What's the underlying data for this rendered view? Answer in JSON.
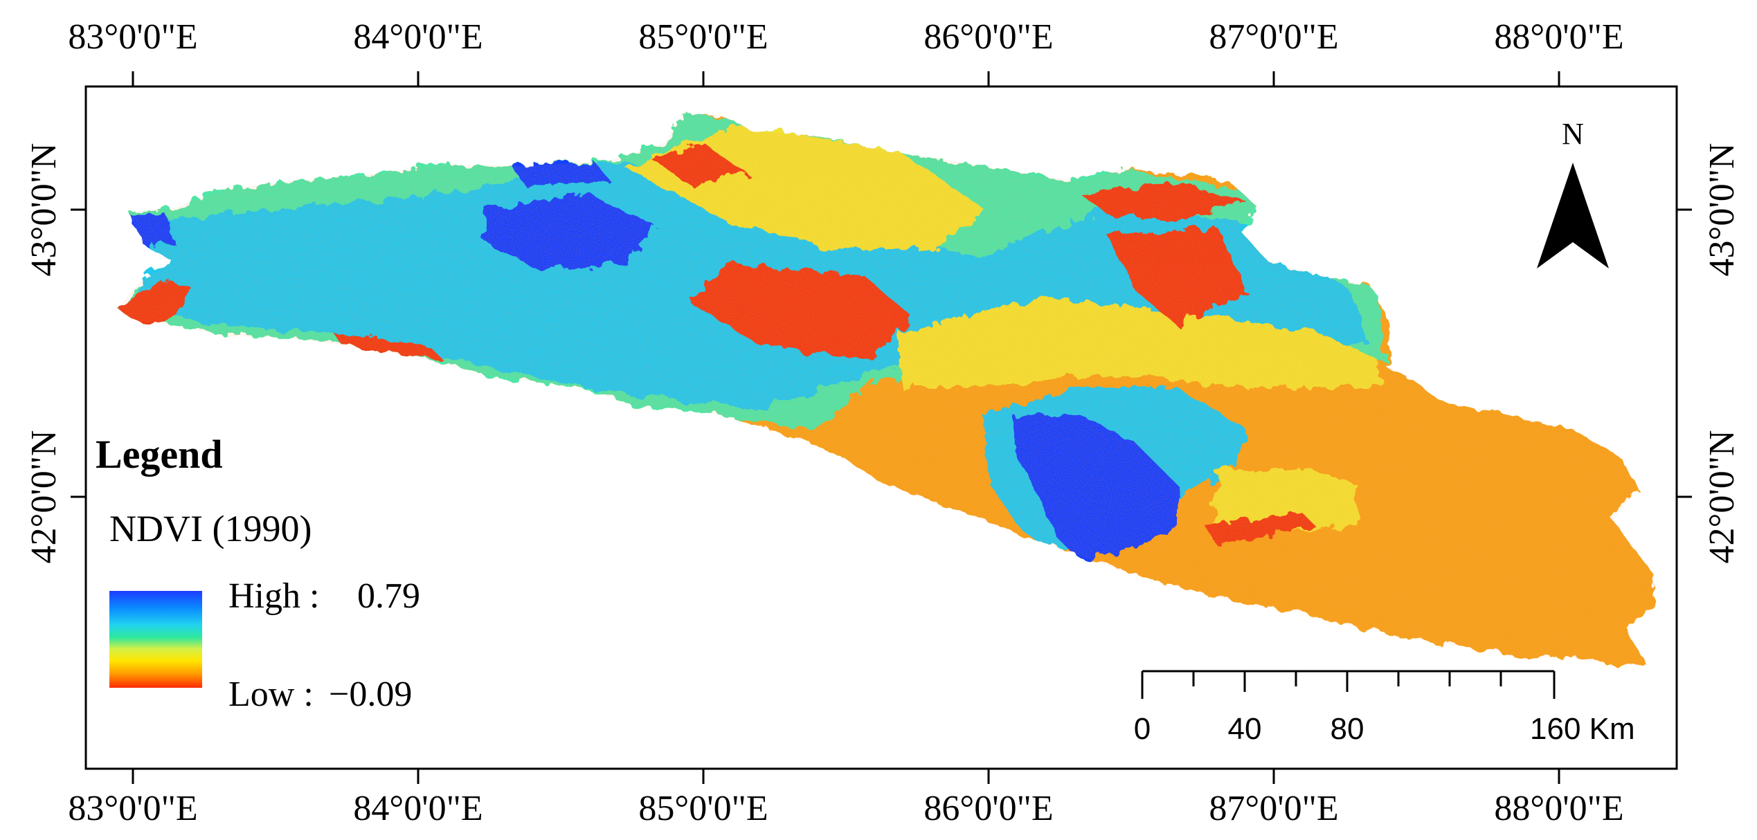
{
  "top_labels": [
    "83°0'0\"E",
    "84°0'0\"E",
    "85°0'0\"E",
    "86°0'0\"E",
    "87°0'0\"E",
    "88°0'0\"E"
  ],
  "bottom_labels": [
    "83°0'0\"E",
    "84°0'0\"E",
    "85°0'0\"E",
    "86°0'0\"E",
    "87°0'0\"E",
    "88°0'0\"E"
  ],
  "left_labels": [
    "43°0'0\"N",
    "42°0'0\"N"
  ],
  "right_labels": [
    "43°0'0\"N",
    "42°0'0\"N"
  ],
  "north_label": "N",
  "legend": {
    "title": "Legend",
    "layer": "NDVI (1990)",
    "high_label": "High :",
    "high_value": "0.79",
    "low_label": "Low :",
    "low_value": "−0.09",
    "colors": [
      "#1e3cff",
      "#0a8cff",
      "#22d2f0",
      "#2ee89c",
      "#d6f046",
      "#ffe600",
      "#ffa000",
      "#ff2a00"
    ]
  },
  "scale_bar": {
    "labels": [
      "0",
      "40",
      "80",
      "160 Km"
    ]
  },
  "colors": {
    "orange": "#f6a21a",
    "yellow": "#f2e033",
    "green": "#4fe6a8",
    "cyan": "#22c8ee",
    "blue": "#1740ff",
    "red": "#ef3d14"
  }
}
